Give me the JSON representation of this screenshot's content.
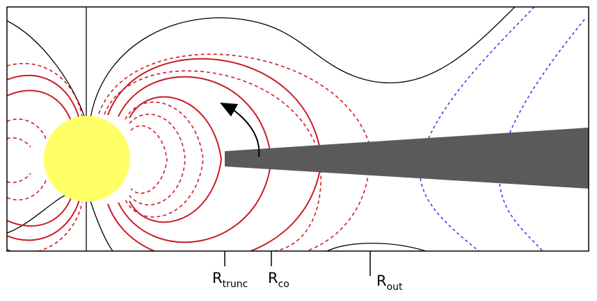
{
  "labels": {
    "r_trunc": {
      "main": "R",
      "sub": "trunc"
    },
    "r_co": {
      "main": "R",
      "sub": "co"
    },
    "r_out": {
      "main": "R",
      "sub": "out"
    }
  },
  "colors": {
    "star": "#ffff66",
    "disk": "#5a5a5a",
    "closed_field": "#cc1a22",
    "open_field": "#000000",
    "outer_field": "#3a3aee",
    "frame": "#000000"
  }
}
